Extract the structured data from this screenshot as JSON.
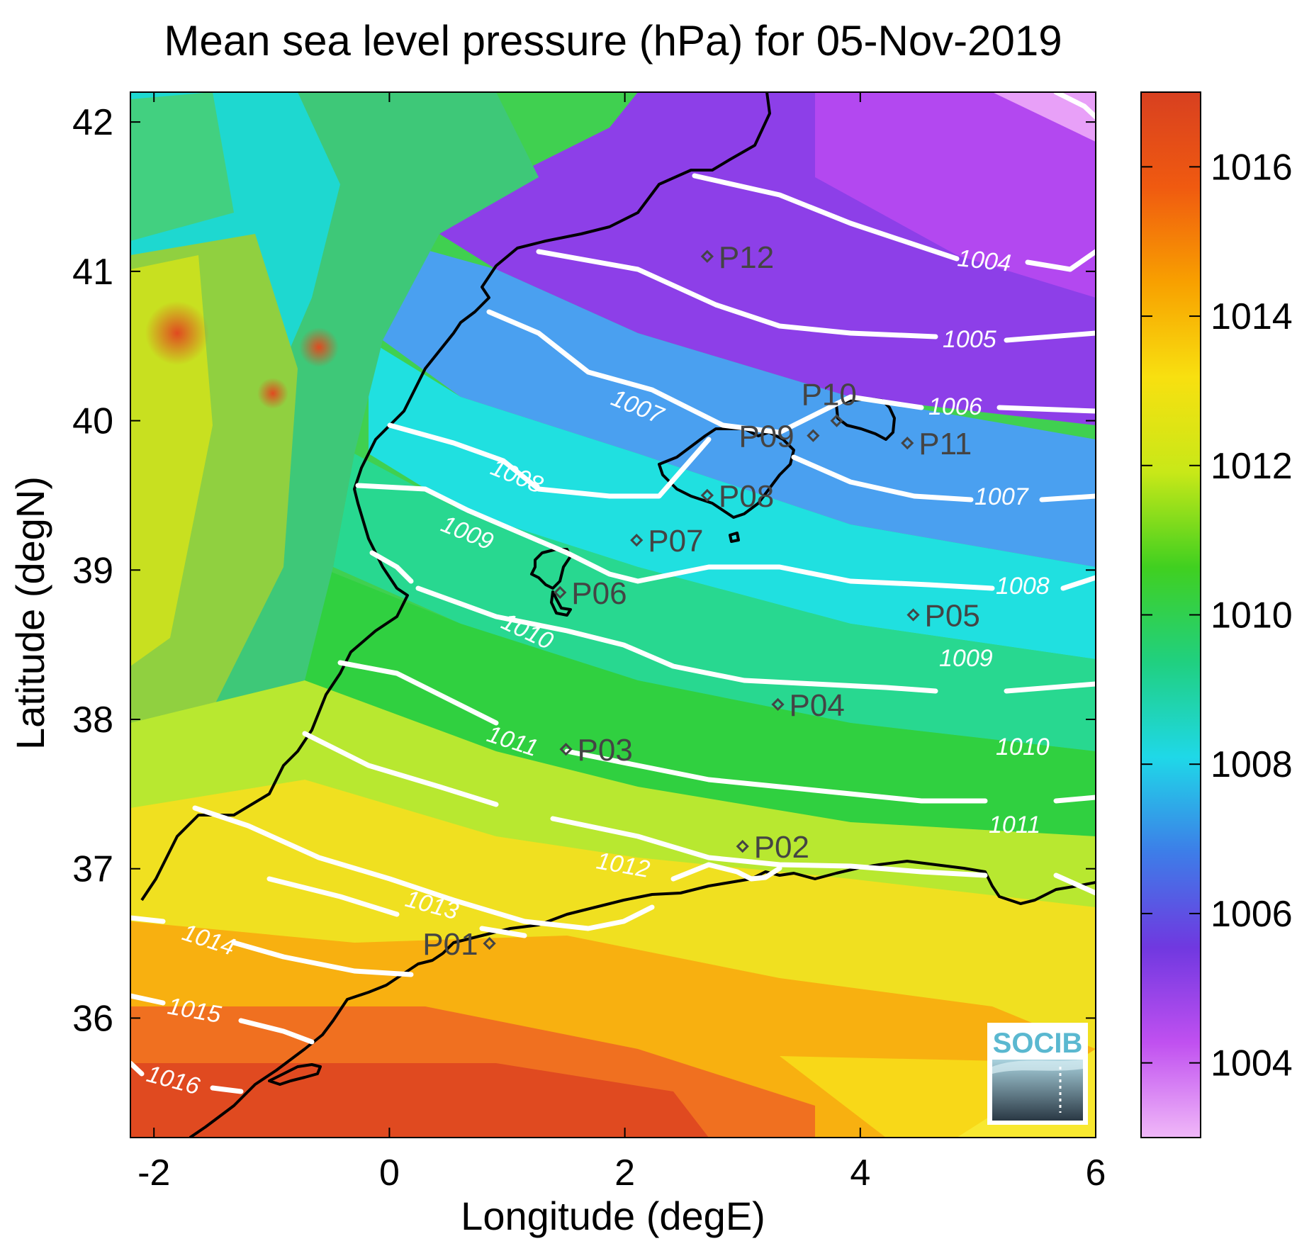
{
  "title": "Mean sea level pressure (hPa) for 05-Nov-2019",
  "xlabel": "Longitude (degE)",
  "ylabel": "Latitude (degN)",
  "logo_text": "SOCIB",
  "colors": {
    "contour": "#ffffff",
    "coast": "#000000",
    "station": "#444444"
  },
  "chart_data": {
    "type": "heatmap",
    "xlim": [
      -2.2,
      6
    ],
    "ylim": [
      35.2,
      42.2
    ],
    "xticks": [
      "-2",
      "0",
      "2",
      "4",
      "6"
    ],
    "yticks": [
      "36",
      "37",
      "38",
      "39",
      "40",
      "41",
      "42"
    ],
    "colorbar": {
      "range": [
        1003,
        1017
      ],
      "ticks": [
        "1004",
        "1006",
        "1008",
        "1010",
        "1012",
        "1014",
        "1016"
      ],
      "colormap": [
        "#f0b8f8",
        "#c050f0",
        "#7038e0",
        "#3d7de8",
        "#1fd8e8",
        "#20d080",
        "#40d020",
        "#c8e818",
        "#f8e010",
        "#f8a000",
        "#f05a10",
        "#d84020"
      ]
    },
    "contour_labels": [
      "1004",
      "1005",
      "1006",
      "1007",
      "1007",
      "1008",
      "1008",
      "1009",
      "1009",
      "1010",
      "1010",
      "1011",
      "1011",
      "1012",
      "1013",
      "1014",
      "1015",
      "1016"
    ],
    "stations": [
      {
        "name": "P01",
        "lon": 0.85,
        "lat": 36.5
      },
      {
        "name": "P02",
        "lon": 3.0,
        "lat": 37.15
      },
      {
        "name": "P03",
        "lon": 1.5,
        "lat": 37.8
      },
      {
        "name": "P04",
        "lon": 3.3,
        "lat": 38.1
      },
      {
        "name": "P05",
        "lon": 4.45,
        "lat": 38.7
      },
      {
        "name": "P06",
        "lon": 1.45,
        "lat": 38.85
      },
      {
        "name": "P07",
        "lon": 2.1,
        "lat": 39.2
      },
      {
        "name": "P08",
        "lon": 2.7,
        "lat": 39.5
      },
      {
        "name": "P09",
        "lon": 3.6,
        "lat": 39.9
      },
      {
        "name": "P10",
        "lon": 3.8,
        "lat": 40.0
      },
      {
        "name": "P11",
        "lon": 4.4,
        "lat": 39.85
      },
      {
        "name": "P12",
        "lon": 2.7,
        "lat": 41.1
      }
    ]
  }
}
